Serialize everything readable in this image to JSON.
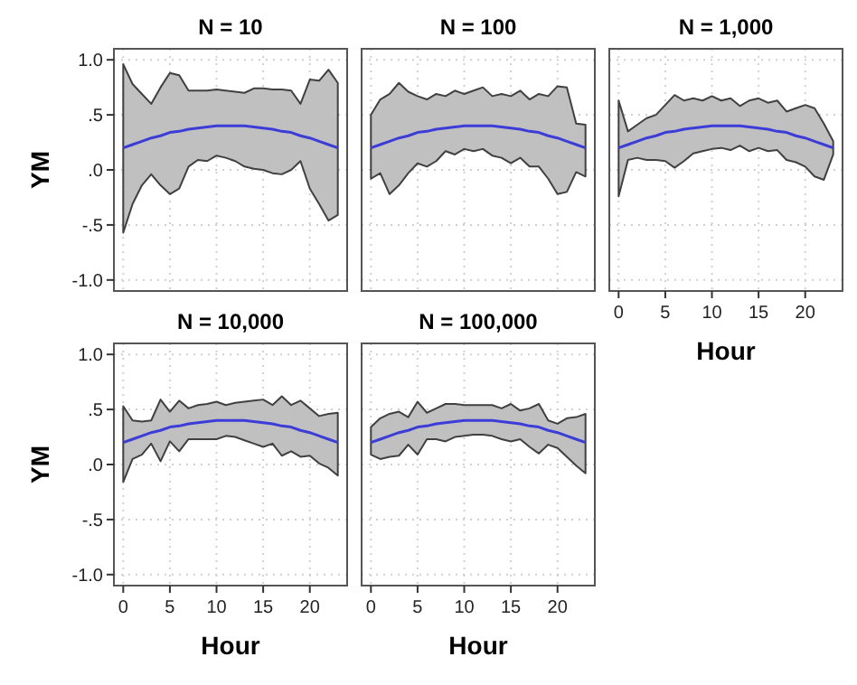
{
  "chart_data": [
    {
      "type": "line",
      "title": "N = 10",
      "ylabel": "YM",
      "x": [
        0,
        1,
        2,
        3,
        4,
        5,
        6,
        7,
        8,
        9,
        10,
        11,
        12,
        13,
        14,
        15,
        16,
        17,
        18,
        19,
        20,
        21,
        22,
        23
      ],
      "xlim": [
        -1,
        24
      ],
      "xticks": [
        0,
        5,
        10,
        15,
        20
      ],
      "ylim": [
        -1.1,
        1.1
      ],
      "yticks": [
        {
          "value": -1,
          "label": "-1.0"
        },
        {
          "value": -0.5,
          "label": "-.5"
        },
        {
          "value": 0,
          "label": ".0"
        },
        {
          "value": 0.5,
          "label": ".5"
        },
        {
          "value": 1,
          "label": "1.0"
        }
      ],
      "grid": true,
      "tick_labels": "y",
      "series": [
        {
          "color": "#3c3cd8",
          "values": [
            0.2,
            0.23,
            0.26,
            0.29,
            0.31,
            0.34,
            0.35,
            0.37,
            0.38,
            0.39,
            0.4,
            0.4,
            0.4,
            0.4,
            0.39,
            0.38,
            0.37,
            0.35,
            0.34,
            0.31,
            0.29,
            0.26,
            0.23,
            0.2
          ],
          "lower": [
            -0.57,
            -0.31,
            -0.14,
            -0.04,
            -0.14,
            -0.22,
            -0.17,
            0.03,
            0.09,
            0.08,
            0.13,
            0.11,
            0.08,
            0.03,
            0.01,
            0,
            -0.03,
            -0.04,
            0,
            0.08,
            -0.17,
            -0.31,
            -0.46,
            -0.41
          ],
          "upper": [
            0.96,
            0.78,
            0.69,
            0.6,
            0.75,
            0.88,
            0.86,
            0.72,
            0.72,
            0.72,
            0.73,
            0.72,
            0.71,
            0.7,
            0.74,
            0.74,
            0.73,
            0.73,
            0.72,
            0.6,
            0.82,
            0.81,
            0.91,
            0.79
          ]
        }
      ]
    },
    {
      "type": "line",
      "title": "N = 100",
      "x": [
        0,
        1,
        2,
        3,
        4,
        5,
        6,
        7,
        8,
        9,
        10,
        11,
        12,
        13,
        14,
        15,
        16,
        17,
        18,
        19,
        20,
        21,
        22,
        23
      ],
      "xlim": [
        -1,
        24
      ],
      "xticks": [
        0,
        5,
        10,
        15,
        20
      ],
      "ylim": [
        -1.1,
        1.1
      ],
      "yticks": [
        -1,
        -0.5,
        0,
        0.5,
        1
      ],
      "grid": true,
      "tick_labels": false,
      "series": [
        {
          "color": "#3c3cd8",
          "values": [
            0.2,
            0.23,
            0.26,
            0.29,
            0.31,
            0.34,
            0.35,
            0.37,
            0.38,
            0.39,
            0.4,
            0.4,
            0.4,
            0.4,
            0.39,
            0.38,
            0.37,
            0.35,
            0.34,
            0.31,
            0.29,
            0.26,
            0.23,
            0.2
          ],
          "lower": [
            -0.08,
            -0.03,
            -0.22,
            -0.14,
            -0.03,
            0.06,
            0.03,
            0.08,
            0.17,
            0.14,
            0.19,
            0.17,
            0.19,
            0.13,
            0.11,
            0.06,
            0.11,
            0.03,
            0.03,
            -0.08,
            -0.22,
            -0.2,
            -0.02,
            -0.06
          ],
          "upper": [
            0.5,
            0.64,
            0.69,
            0.79,
            0.71,
            0.67,
            0.64,
            0.69,
            0.67,
            0.72,
            0.69,
            0.72,
            0.75,
            0.67,
            0.69,
            0.67,
            0.72,
            0.64,
            0.69,
            0.67,
            0.76,
            0.75,
            0.42,
            0.41
          ]
        }
      ]
    },
    {
      "type": "line",
      "title": "N = 1,000",
      "xlabel": "Hour",
      "x": [
        0,
        1,
        2,
        3,
        4,
        5,
        6,
        7,
        8,
        9,
        10,
        11,
        12,
        13,
        14,
        15,
        16,
        17,
        18,
        19,
        20,
        21,
        22,
        23
      ],
      "xlim": [
        -1,
        24
      ],
      "xticks": [
        0,
        5,
        10,
        15,
        20
      ],
      "ylim": [
        -1.1,
        1.1
      ],
      "yticks": [
        -1,
        -0.5,
        0,
        0.5,
        1
      ],
      "grid": true,
      "tick_labels": "x",
      "series": [
        {
          "color": "#3c3cd8",
          "values": [
            0.2,
            0.23,
            0.26,
            0.29,
            0.31,
            0.34,
            0.35,
            0.37,
            0.38,
            0.39,
            0.4,
            0.4,
            0.4,
            0.4,
            0.39,
            0.38,
            0.37,
            0.35,
            0.34,
            0.31,
            0.29,
            0.26,
            0.23,
            0.2
          ],
          "lower": [
            -0.24,
            0.09,
            0.11,
            0.09,
            0.09,
            0.08,
            0.02,
            0.08,
            0.15,
            0.17,
            0.19,
            0.2,
            0.18,
            0.22,
            0.17,
            0.2,
            0.17,
            0.18,
            0.09,
            0.07,
            0.03,
            -0.06,
            -0.09,
            0.14
          ],
          "upper": [
            0.63,
            0.35,
            0.41,
            0.47,
            0.5,
            0.59,
            0.68,
            0.63,
            0.65,
            0.63,
            0.67,
            0.63,
            0.65,
            0.58,
            0.63,
            0.65,
            0.61,
            0.63,
            0.53,
            0.56,
            0.59,
            0.56,
            0.42,
            0.26
          ]
        }
      ]
    },
    {
      "type": "line",
      "title": "N = 10,000",
      "xlabel": "Hour",
      "ylabel": "YM",
      "x": [
        0,
        1,
        2,
        3,
        4,
        5,
        6,
        7,
        8,
        9,
        10,
        11,
        12,
        13,
        14,
        15,
        16,
        17,
        18,
        19,
        20,
        21,
        22,
        23
      ],
      "xlim": [
        -1,
        24
      ],
      "xticks": [
        0,
        5,
        10,
        15,
        20
      ],
      "ylim": [
        -1.1,
        1.1
      ],
      "yticks": [
        {
          "value": -1,
          "label": "-1.0"
        },
        {
          "value": -0.5,
          "label": "-.5"
        },
        {
          "value": 0,
          "label": ".0"
        },
        {
          "value": 0.5,
          "label": ".5"
        },
        {
          "value": 1,
          "label": "1.0"
        }
      ],
      "grid": true,
      "series": [
        {
          "color": "#3c3cd8",
          "values": [
            0.2,
            0.23,
            0.26,
            0.29,
            0.31,
            0.34,
            0.35,
            0.37,
            0.38,
            0.39,
            0.4,
            0.4,
            0.4,
            0.4,
            0.39,
            0.38,
            0.37,
            0.35,
            0.34,
            0.31,
            0.29,
            0.26,
            0.23,
            0.2
          ],
          "lower": [
            -0.16,
            0.05,
            0.09,
            0.19,
            0.03,
            0.21,
            0.12,
            0.23,
            0.23,
            0.23,
            0.23,
            0.26,
            0.25,
            0.22,
            0.19,
            0.16,
            0.19,
            0.08,
            0.12,
            0.07,
            0.08,
            0.01,
            -0.03,
            -0.1
          ],
          "upper": [
            0.53,
            0.4,
            0.39,
            0.4,
            0.59,
            0.48,
            0.58,
            0.51,
            0.54,
            0.55,
            0.57,
            0.54,
            0.56,
            0.57,
            0.58,
            0.59,
            0.54,
            0.62,
            0.54,
            0.58,
            0.51,
            0.44,
            0.46,
            0.47
          ]
        }
      ]
    },
    {
      "type": "line",
      "title": "N = 100,000",
      "xlabel": "Hour",
      "x": [
        0,
        1,
        2,
        3,
        4,
        5,
        6,
        7,
        8,
        9,
        10,
        11,
        12,
        13,
        14,
        15,
        16,
        17,
        18,
        19,
        20,
        21,
        22,
        23
      ],
      "xlim": [
        -1,
        24
      ],
      "xticks": [
        0,
        5,
        10,
        15,
        20
      ],
      "ylim": [
        -1.1,
        1.1
      ],
      "yticks": [
        -1,
        -0.5,
        0,
        0.5,
        1
      ],
      "grid": true,
      "tick_labels": "x",
      "series": [
        {
          "color": "#3c3cd8",
          "values": [
            0.2,
            0.23,
            0.26,
            0.29,
            0.31,
            0.34,
            0.35,
            0.37,
            0.38,
            0.39,
            0.4,
            0.4,
            0.4,
            0.4,
            0.39,
            0.38,
            0.37,
            0.35,
            0.34,
            0.31,
            0.29,
            0.26,
            0.23,
            0.2
          ],
          "lower": [
            0.09,
            0.05,
            0.07,
            0.08,
            0.18,
            0.09,
            0.23,
            0.23,
            0.21,
            0.25,
            0.26,
            0.27,
            0.27,
            0.26,
            0.23,
            0.21,
            0.23,
            0.16,
            0.1,
            0.18,
            0.15,
            0.07,
            -0.01,
            -0.08
          ],
          "upper": [
            0.34,
            0.42,
            0.46,
            0.48,
            0.43,
            0.57,
            0.47,
            0.51,
            0.55,
            0.55,
            0.54,
            0.54,
            0.54,
            0.54,
            0.51,
            0.55,
            0.49,
            0.51,
            0.55,
            0.4,
            0.37,
            0.42,
            0.43,
            0.46
          ]
        }
      ]
    }
  ]
}
